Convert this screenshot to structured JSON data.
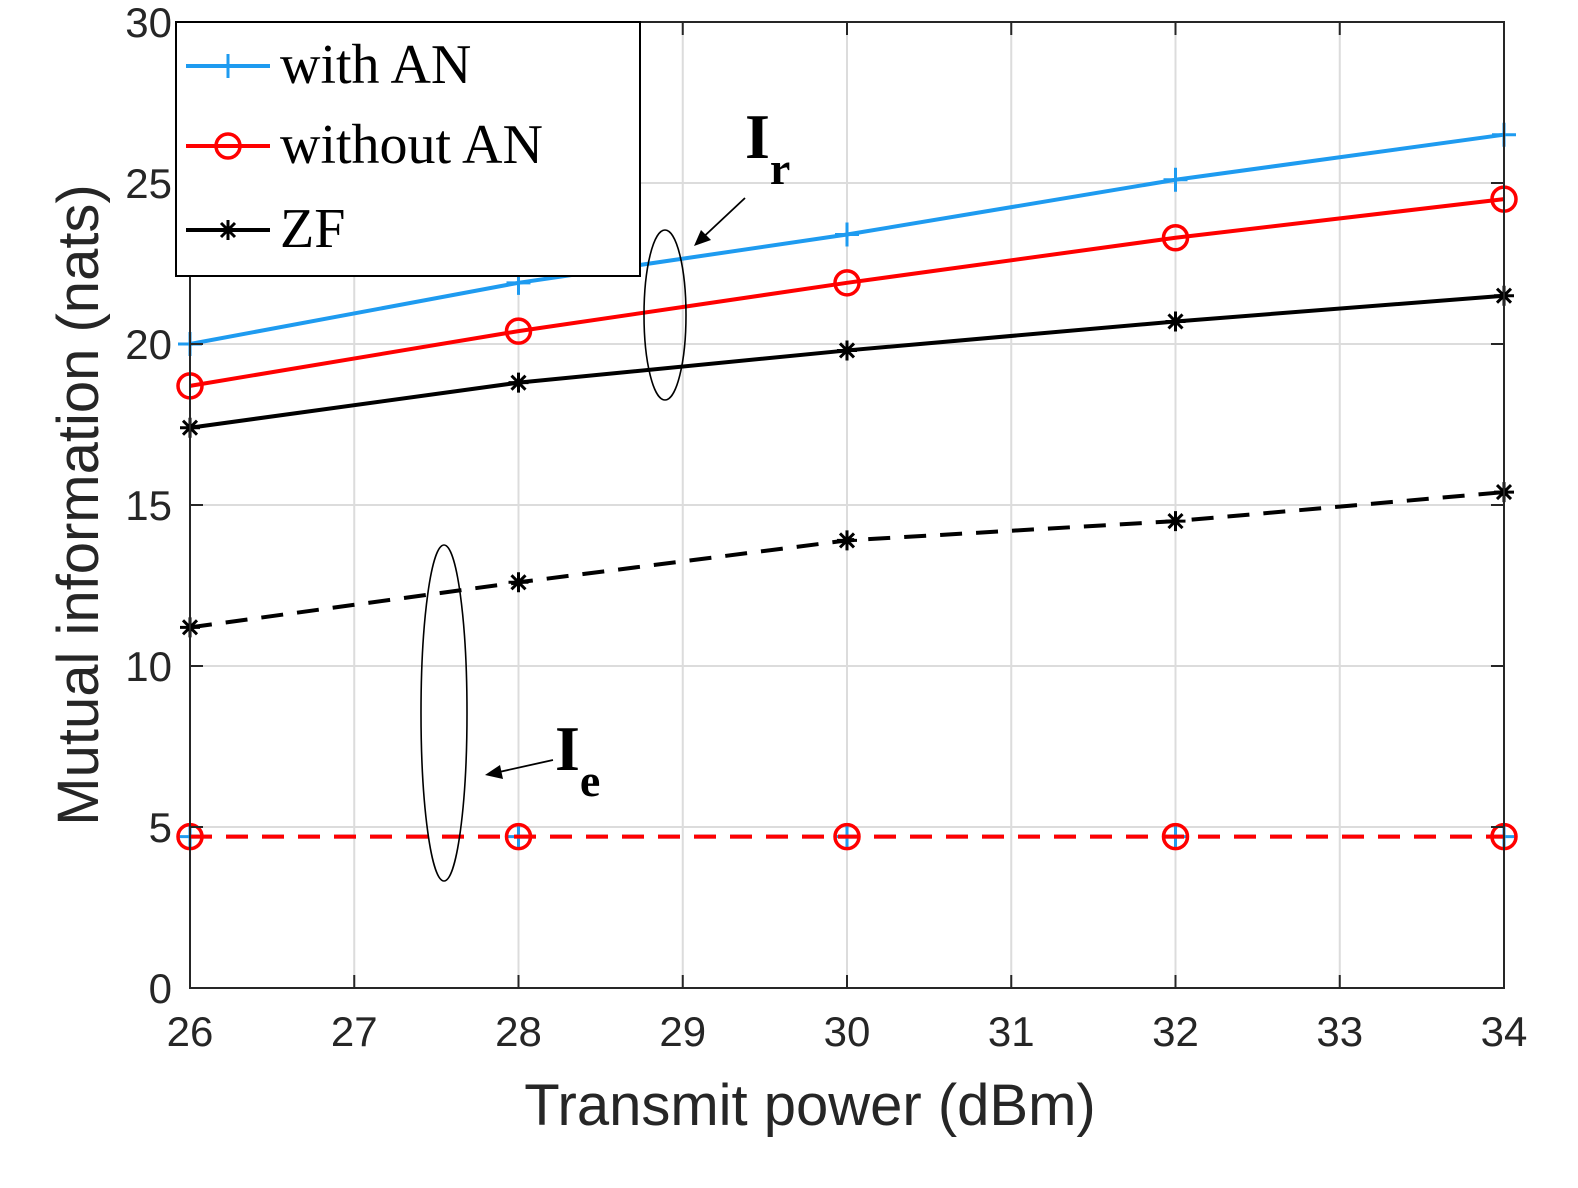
{
  "chart_data": {
    "type": "line",
    "title": "",
    "xlabel": "Transmit power (dBm)",
    "ylabel": "Mutual information (nats)",
    "xlim": [
      26,
      34
    ],
    "ylim": [
      0,
      30
    ],
    "xticks": [
      26,
      27,
      28,
      29,
      30,
      31,
      32,
      33,
      34
    ],
    "yticks": [
      0,
      5,
      10,
      15,
      20,
      25,
      30
    ],
    "grid": true,
    "legend_position": "top-left",
    "x": [
      26,
      28,
      30,
      32,
      34
    ],
    "series": [
      {
        "name": "with AN",
        "metric": "I_r",
        "color": "#1e9bf0",
        "marker": "plus",
        "linestyle": "solid",
        "values": [
          20.0,
          21.9,
          23.4,
          25.1,
          26.5
        ]
      },
      {
        "name": "without AN",
        "metric": "I_r",
        "color": "#ff0000",
        "marker": "circle",
        "linestyle": "solid",
        "values": [
          18.7,
          20.4,
          21.9,
          23.3,
          24.5
        ]
      },
      {
        "name": "ZF",
        "metric": "I_r",
        "color": "#000000",
        "marker": "asterisk",
        "linestyle": "solid",
        "values": [
          17.4,
          18.8,
          19.8,
          20.7,
          21.5
        ]
      },
      {
        "name": "with AN",
        "metric": "I_e",
        "color": "#1e9bf0",
        "marker": "plus",
        "linestyle": "dashed",
        "values": [
          4.7,
          4.7,
          4.7,
          4.7,
          4.7
        ]
      },
      {
        "name": "without AN",
        "metric": "I_e",
        "color": "#ff0000",
        "marker": "circle",
        "linestyle": "dashed",
        "values": [
          4.7,
          4.7,
          4.7,
          4.7,
          4.7
        ]
      },
      {
        "name": "ZF",
        "metric": "I_e",
        "color": "#000000",
        "marker": "asterisk",
        "linestyle": "dashed",
        "values": [
          11.2,
          12.6,
          13.9,
          14.5,
          15.4
        ]
      }
    ],
    "legend": [
      "with AN",
      "without AN",
      "ZF"
    ],
    "annotations": [
      {
        "label": "I",
        "subscript": "r",
        "target": "I_r curves"
      },
      {
        "label": "I",
        "subscript": "e",
        "target": "I_e curves"
      }
    ]
  }
}
